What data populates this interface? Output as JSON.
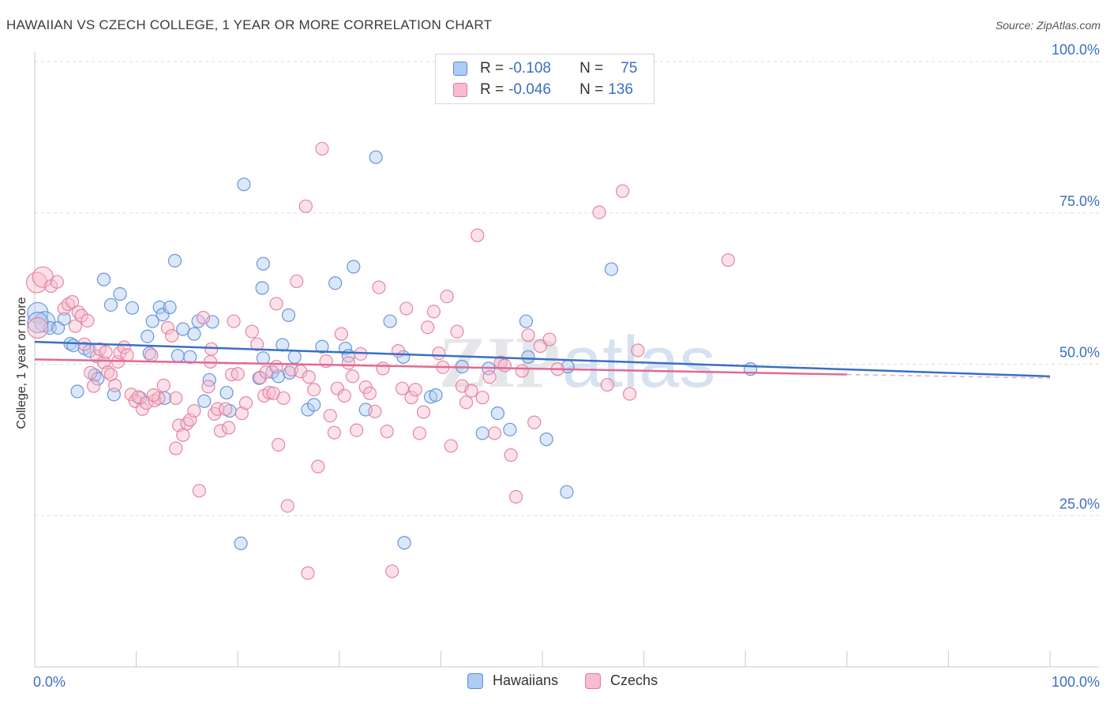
{
  "title": "HAWAIIAN VS CZECH COLLEGE, 1 YEAR OR MORE CORRELATION CHART",
  "source": "Source: ZipAtlas.com",
  "watermark": "ZIPatlas",
  "legend": {
    "rows": [
      {
        "r_label": "R =",
        "r_value": "-0.108",
        "n_label": "N =",
        "n_value": "75",
        "fill": "#aecbf2",
        "stroke": "#5b8bd8"
      },
      {
        "r_label": "R =",
        "r_value": "-0.046",
        "n_label": "N =",
        "n_value": "136",
        "fill": "#f7bccd",
        "stroke": "#e27a9c"
      }
    ]
  },
  "bottom_legend": [
    {
      "label": "Hawaiians",
      "fill": "#aecbf2",
      "stroke": "#5b8bd8"
    },
    {
      "label": "Czechs",
      "fill": "#f7bccd",
      "stroke": "#e27a9c"
    }
  ],
  "chart_data": {
    "type": "scatter",
    "ylabel": "College, 1 year or more",
    "xlim": [
      0,
      100
    ],
    "ylim": [
      0,
      100
    ],
    "x_tick_labels": [
      "0.0%",
      "100.0%"
    ],
    "y_tick_labels": [
      {
        "value": 25,
        "label": "25.0%"
      },
      {
        "value": 50,
        "label": "50.0%"
      },
      {
        "value": 75,
        "label": "75.0%"
      },
      {
        "value": 100,
        "label": "100.0%"
      }
    ],
    "grid": true,
    "series": [
      {
        "name": "Hawaiians",
        "color": "#5b8bd8",
        "fill": "#aecbf2",
        "trend": {
          "x": [
            0,
            100
          ],
          "y": [
            53.7,
            48.0
          ],
          "color": "#3a6fc4"
        },
        "points": [
          [
            0.3,
            58.5
          ],
          [
            1.0,
            57.0
          ],
          [
            1.5,
            56.0
          ],
          [
            2.3,
            56.0
          ],
          [
            2.9,
            57.5
          ],
          [
            3.5,
            53.4
          ],
          [
            3.8,
            53.1
          ],
          [
            4.2,
            45.5
          ],
          [
            4.9,
            52.6
          ],
          [
            5.4,
            52.2
          ],
          [
            5.9,
            48.2
          ],
          [
            6.2,
            47.6
          ],
          [
            6.8,
            64.0
          ],
          [
            7.5,
            59.8
          ],
          [
            7.8,
            45.0
          ],
          [
            8.4,
            61.6
          ],
          [
            9.6,
            59.3
          ],
          [
            10.4,
            44.4
          ],
          [
            11.1,
            54.6
          ],
          [
            11.3,
            51.8
          ],
          [
            11.6,
            57.1
          ],
          [
            12.3,
            59.4
          ],
          [
            12.6,
            58.2
          ],
          [
            12.8,
            44.4
          ],
          [
            13.3,
            59.4
          ],
          [
            13.8,
            67.1
          ],
          [
            14.1,
            51.4
          ],
          [
            14.6,
            55.8
          ],
          [
            15.3,
            51.2
          ],
          [
            15.7,
            55.0
          ],
          [
            16.1,
            57.1
          ],
          [
            16.7,
            43.9
          ],
          [
            17.2,
            47.4
          ],
          [
            17.5,
            57.0
          ],
          [
            18.9,
            45.3
          ],
          [
            19.2,
            42.3
          ],
          [
            20.6,
            79.7
          ],
          [
            22.1,
            47.7
          ],
          [
            22.4,
            62.6
          ],
          [
            22.5,
            66.6
          ],
          [
            23.4,
            48.7
          ],
          [
            24.0,
            48.0
          ],
          [
            24.4,
            53.2
          ],
          [
            25.0,
            58.1
          ],
          [
            25.1,
            48.6
          ],
          [
            25.6,
            51.2
          ],
          [
            26.9,
            42.5
          ],
          [
            27.5,
            43.3
          ],
          [
            28.3,
            52.9
          ],
          [
            29.6,
            63.4
          ],
          [
            30.6,
            52.6
          ],
          [
            30.9,
            51.4
          ],
          [
            31.4,
            66.1
          ],
          [
            32.6,
            42.5
          ],
          [
            33.6,
            84.2
          ],
          [
            35.0,
            57.1
          ],
          [
            36.3,
            51.2
          ],
          [
            39.0,
            44.6
          ],
          [
            39.5,
            44.9
          ],
          [
            42.1,
            49.6
          ],
          [
            44.1,
            38.6
          ],
          [
            44.7,
            49.3
          ],
          [
            45.6,
            41.9
          ],
          [
            46.8,
            39.2
          ],
          [
            48.4,
            57.1
          ],
          [
            48.6,
            51.2
          ],
          [
            50.4,
            37.6
          ],
          [
            52.5,
            49.6
          ],
          [
            52.4,
            28.9
          ],
          [
            56.8,
            65.7
          ],
          [
            70.5,
            49.2
          ],
          [
            0.3,
            56.9
          ],
          [
            20.3,
            20.4
          ],
          [
            36.4,
            20.5
          ],
          [
            22.5,
            51.0
          ]
        ]
      },
      {
        "name": "Czechs",
        "color": "#e27a9c",
        "fill": "#f7bccd",
        "trend": {
          "x": [
            0,
            80
          ],
          "y": [
            50.8,
            48.3
          ],
          "color": "#e06a93"
        },
        "dashed_extension": {
          "x": [
            80,
            100
          ],
          "y": [
            48.3,
            47.7
          ]
        },
        "points": [
          [
            0.2,
            63.5
          ],
          [
            0.3,
            56.0
          ],
          [
            0.8,
            64.4
          ],
          [
            1.6,
            62.9
          ],
          [
            2.2,
            63.6
          ],
          [
            2.9,
            59.2
          ],
          [
            3.3,
            59.9
          ],
          [
            3.7,
            60.3
          ],
          [
            4.0,
            56.3
          ],
          [
            4.3,
            58.6
          ],
          [
            4.6,
            58.0
          ],
          [
            4.9,
            53.3
          ],
          [
            5.2,
            57.2
          ],
          [
            5.5,
            48.6
          ],
          [
            5.8,
            46.4
          ],
          [
            6.1,
            51.3
          ],
          [
            6.4,
            52.5
          ],
          [
            6.8,
            50.3
          ],
          [
            7.0,
            52.0
          ],
          [
            7.2,
            48.7
          ],
          [
            7.5,
            48.3
          ],
          [
            7.9,
            46.5
          ],
          [
            8.2,
            50.4
          ],
          [
            8.4,
            51.9
          ],
          [
            8.8,
            52.8
          ],
          [
            9.1,
            51.5
          ],
          [
            9.5,
            45.0
          ],
          [
            9.9,
            43.9
          ],
          [
            10.2,
            44.6
          ],
          [
            10.6,
            42.6
          ],
          [
            11.0,
            43.6
          ],
          [
            11.5,
            51.5
          ],
          [
            11.8,
            44.0
          ],
          [
            12.2,
            44.4
          ],
          [
            12.7,
            46.5
          ],
          [
            13.1,
            56.0
          ],
          [
            13.5,
            54.7
          ],
          [
            13.9,
            44.4
          ],
          [
            14.2,
            39.9
          ],
          [
            14.6,
            38.3
          ],
          [
            15.0,
            40.2
          ],
          [
            15.3,
            40.8
          ],
          [
            15.7,
            42.3
          ],
          [
            16.2,
            29.1
          ],
          [
            16.6,
            57.7
          ],
          [
            17.1,
            46.3
          ],
          [
            17.4,
            52.5
          ],
          [
            17.7,
            41.8
          ],
          [
            18.0,
            42.6
          ],
          [
            18.3,
            39.0
          ],
          [
            18.8,
            42.6
          ],
          [
            19.1,
            39.5
          ],
          [
            19.4,
            48.3
          ],
          [
            19.6,
            57.1
          ],
          [
            20.0,
            48.4
          ],
          [
            20.4,
            41.9
          ],
          [
            20.8,
            43.6
          ],
          [
            21.4,
            55.4
          ],
          [
            21.9,
            53.3
          ],
          [
            22.2,
            47.8
          ],
          [
            22.6,
            44.8
          ],
          [
            22.8,
            48.7
          ],
          [
            23.1,
            45.3
          ],
          [
            23.5,
            45.2
          ],
          [
            23.8,
            49.6
          ],
          [
            24.0,
            36.7
          ],
          [
            24.5,
            44.4
          ],
          [
            24.9,
            26.6
          ],
          [
            25.3,
            49.1
          ],
          [
            25.8,
            63.7
          ],
          [
            26.2,
            48.8
          ],
          [
            26.7,
            76.1
          ],
          [
            27.0,
            47.9
          ],
          [
            27.5,
            45.8
          ],
          [
            27.9,
            33.1
          ],
          [
            28.3,
            85.6
          ],
          [
            28.7,
            50.5
          ],
          [
            29.1,
            41.5
          ],
          [
            29.5,
            38.7
          ],
          [
            29.8,
            46.0
          ],
          [
            30.2,
            55.0
          ],
          [
            30.5,
            44.8
          ],
          [
            30.9,
            50.2
          ],
          [
            31.3,
            48.0
          ],
          [
            31.7,
            39.1
          ],
          [
            32.1,
            51.7
          ],
          [
            32.6,
            46.2
          ],
          [
            33.0,
            45.2
          ],
          [
            33.5,
            42.2
          ],
          [
            33.9,
            62.7
          ],
          [
            34.3,
            49.3
          ],
          [
            34.7,
            38.9
          ],
          [
            35.2,
            15.8
          ],
          [
            35.8,
            52.2
          ],
          [
            36.2,
            46.0
          ],
          [
            36.6,
            59.2
          ],
          [
            37.1,
            44.5
          ],
          [
            37.5,
            45.8
          ],
          [
            37.9,
            38.6
          ],
          [
            38.3,
            42.1
          ],
          [
            38.7,
            56.1
          ],
          [
            39.3,
            58.7
          ],
          [
            39.8,
            51.8
          ],
          [
            40.2,
            49.5
          ],
          [
            40.6,
            61.2
          ],
          [
            41.0,
            36.5
          ],
          [
            41.6,
            55.4
          ],
          [
            42.1,
            46.4
          ],
          [
            42.5,
            43.7
          ],
          [
            43.0,
            45.6
          ],
          [
            43.6,
            71.3
          ],
          [
            44.1,
            44.5
          ],
          [
            44.8,
            47.9
          ],
          [
            45.3,
            38.6
          ],
          [
            45.9,
            50.3
          ],
          [
            46.3,
            49.8
          ],
          [
            46.9,
            35.0
          ],
          [
            47.4,
            28.1
          ],
          [
            48.0,
            48.9
          ],
          [
            48.6,
            54.8
          ],
          [
            49.2,
            40.4
          ],
          [
            49.8,
            53.0
          ],
          [
            50.7,
            54.1
          ],
          [
            51.5,
            49.2
          ],
          [
            55.6,
            75.1
          ],
          [
            56.4,
            46.6
          ],
          [
            57.9,
            78.6
          ],
          [
            58.6,
            45.1
          ],
          [
            59.4,
            52.3
          ],
          [
            68.3,
            67.2
          ],
          [
            26.9,
            15.5
          ],
          [
            23.8,
            60.0
          ],
          [
            17.3,
            50.4
          ],
          [
            11.7,
            44.9
          ],
          [
            13.9,
            36.1
          ]
        ]
      }
    ]
  }
}
